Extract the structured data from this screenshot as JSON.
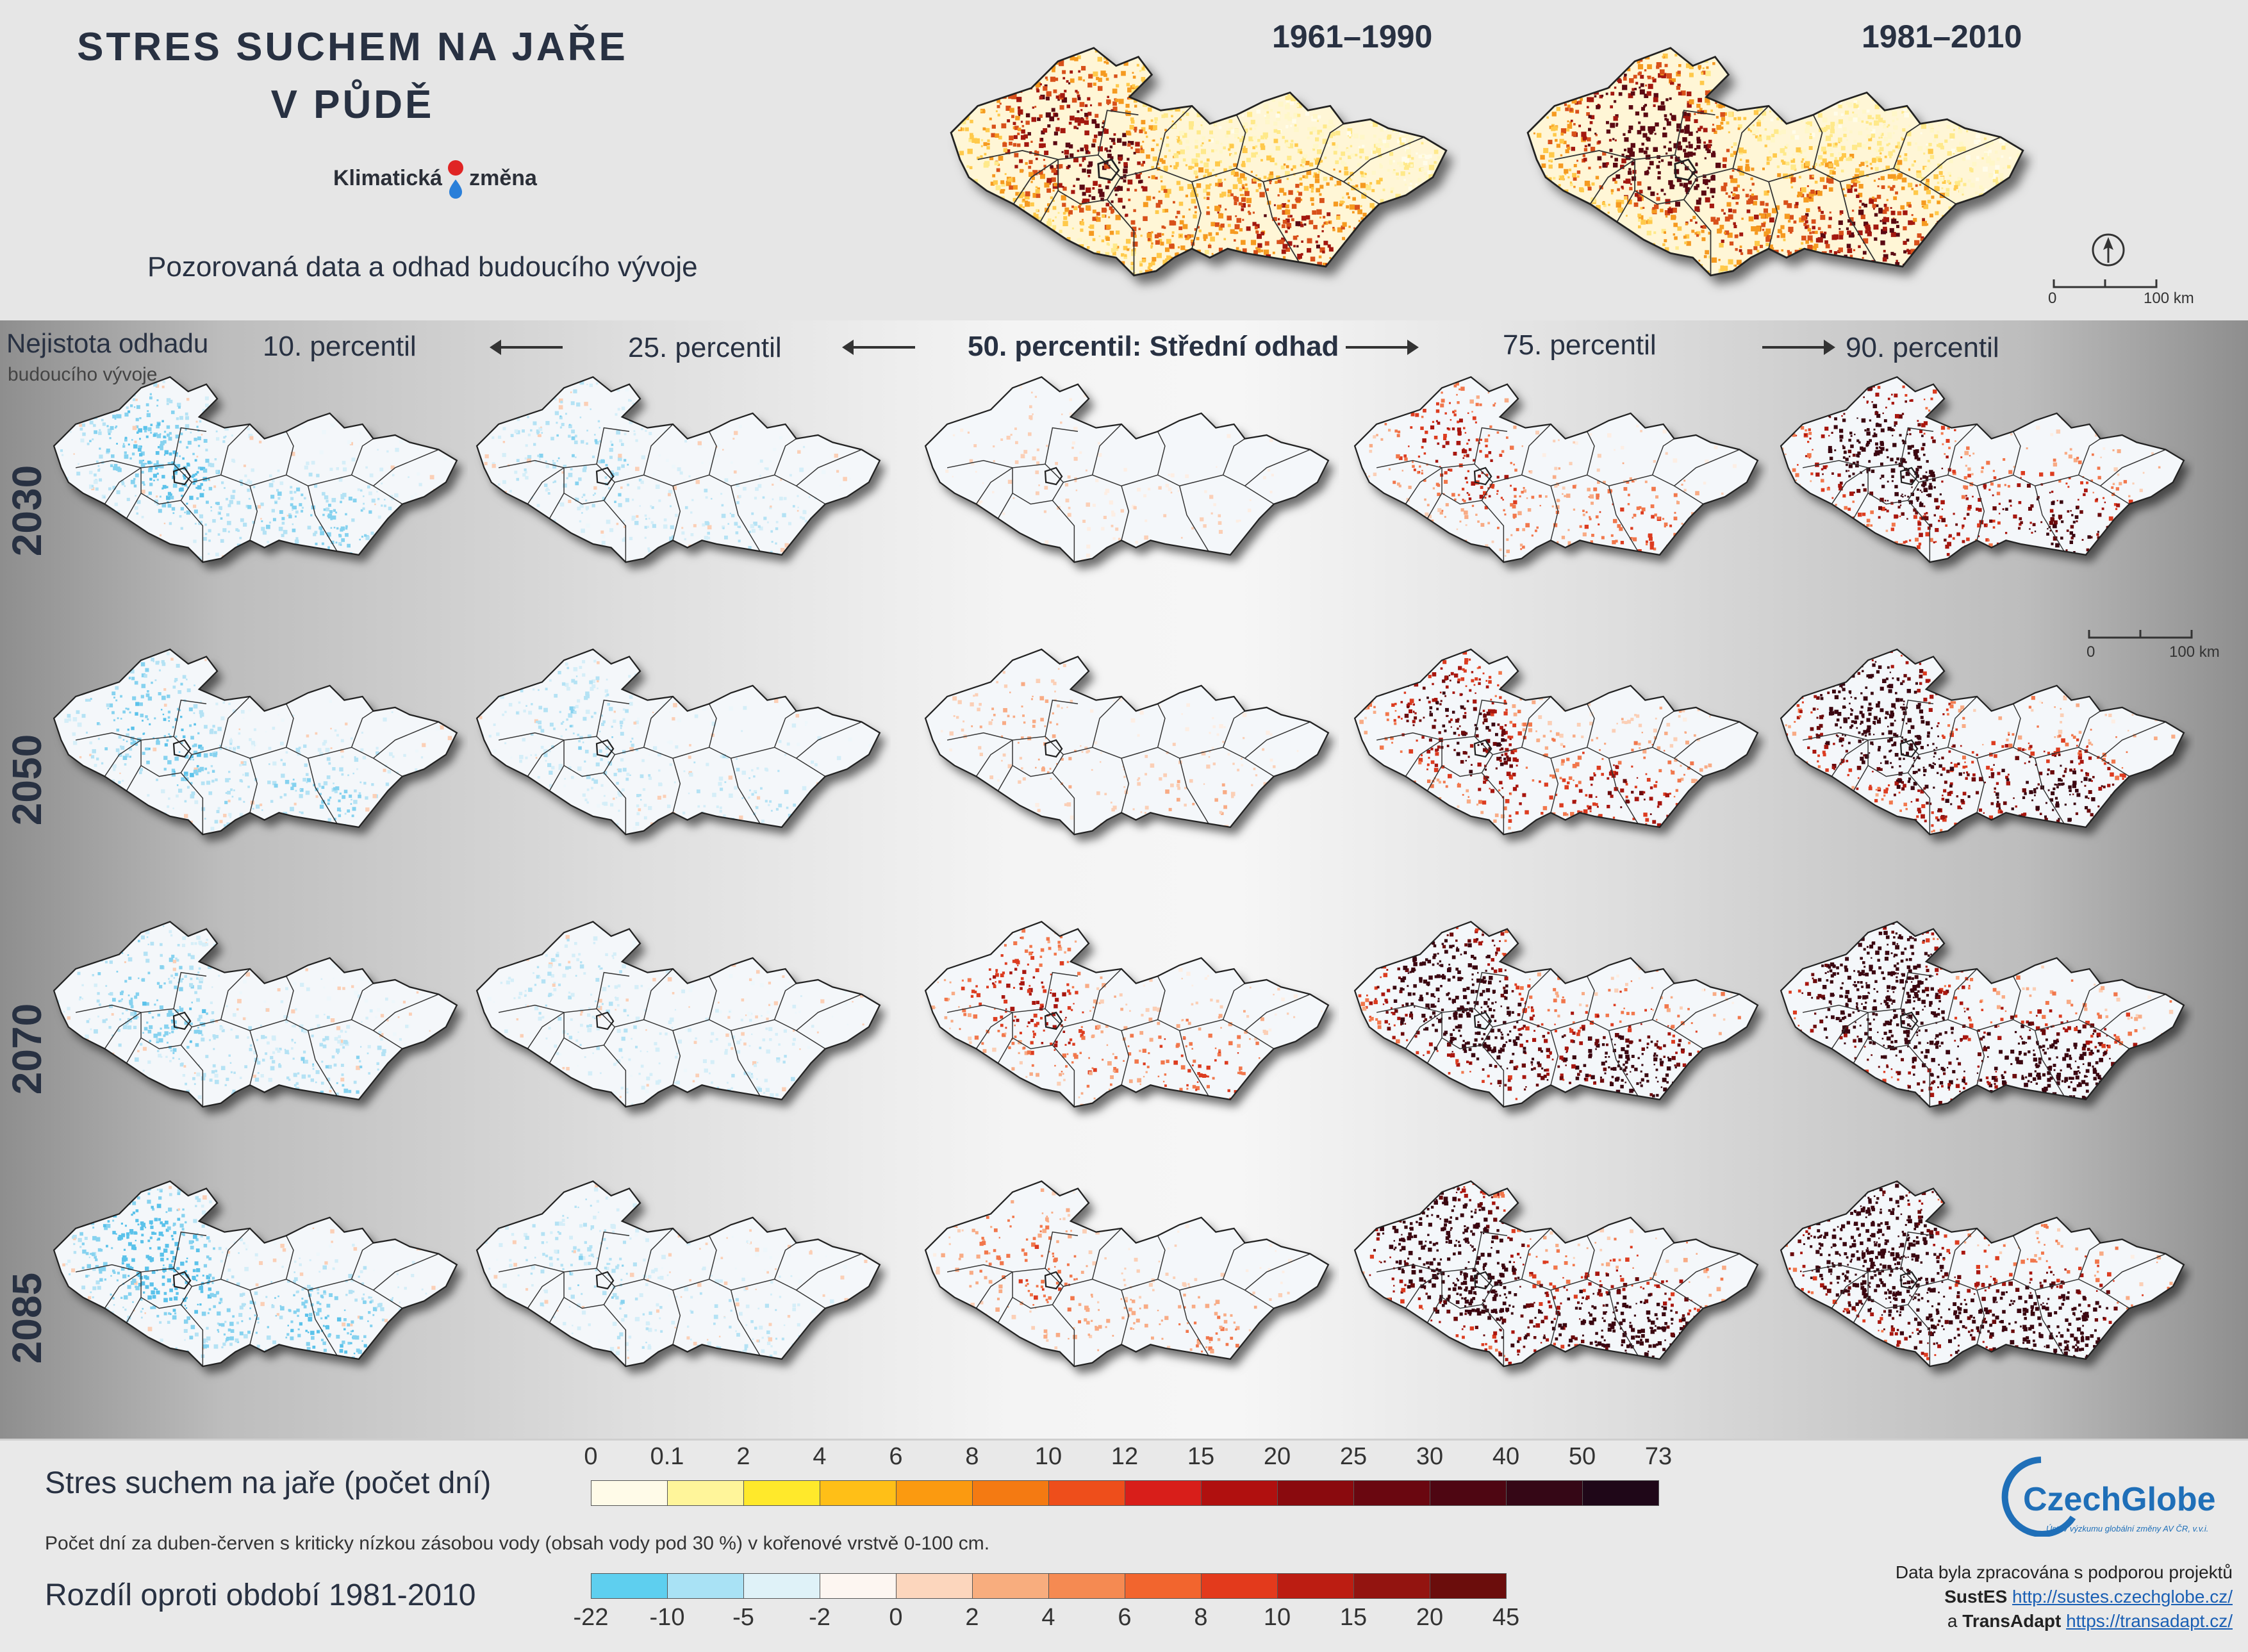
{
  "header": {
    "title_line1": "STRES SUCHEM NA JAŘE",
    "title_line2": "V PŮDĚ",
    "logo_left": "Klimatická",
    "logo_right": "změna",
    "subtitle": "Pozorovaná data a odhad budoucího vývoje",
    "period1": "1961–1990",
    "period2": "1981–2010",
    "scale_start": "0",
    "scale_end": "100 km"
  },
  "grid": {
    "uncertainty_line1": "Nejistota odhadu",
    "uncertainty_line2": "budoucího vývoje",
    "columns": [
      "10. percentil",
      "25. percentil",
      "50. percentil: Střední odhad",
      "75. percentil",
      "90. percentil"
    ],
    "rows": [
      "2030",
      "2050",
      "2070",
      "2085"
    ],
    "intensity": [
      [
        -0.55,
        -0.35,
        0.12,
        0.4,
        0.7
      ],
      [
        -0.5,
        -0.3,
        0.2,
        0.55,
        0.8
      ],
      [
        -0.45,
        -0.25,
        0.42,
        0.85,
        0.95
      ],
      [
        -0.7,
        -0.3,
        0.3,
        0.9,
        1.0
      ]
    ],
    "scale_start": "0",
    "scale_end": "100 km"
  },
  "legend": {
    "absolute_title": "Stres suchem na jaře (počet dní)",
    "absolute_ticks": [
      "0",
      "0.1",
      "2",
      "4",
      "6",
      "8",
      "10",
      "12",
      "15",
      "20",
      "25",
      "30",
      "40",
      "50",
      "73"
    ],
    "absolute_colors": [
      "#fffbe8",
      "#fff59a",
      "#ffe92b",
      "#ffbf17",
      "#fb9a10",
      "#f47a12",
      "#ee4e1b",
      "#d81e1a",
      "#b0100f",
      "#8a0a0e",
      "#6a0710",
      "#4e0612",
      "#350716",
      "#1f0718"
    ],
    "description": "Počet dní za duben-červen s kriticky nízkou zásobou vody (obsah vody pod 30 %) v kořenové vrstvě 0-100 cm.",
    "difference_title": "Rozdíl oproti období 1981-2010",
    "difference_ticks": [
      "-22",
      "-10",
      "-5",
      "-2",
      "0",
      "2",
      "4",
      "6",
      "8",
      "10",
      "15",
      "20",
      "45"
    ],
    "difference_colors": [
      "#5ecfef",
      "#a9e2f5",
      "#dff2f8",
      "#fdf6f1",
      "#fcd6bd",
      "#f8ad7e",
      "#f58a52",
      "#f2652e",
      "#e33a1c",
      "#bc1d12",
      "#931410",
      "#6b0d0c"
    ]
  },
  "footer": {
    "brand": "CzechGlobe",
    "brand_sub": "Ústav výzkumu globální změny AV ČR, v.v.i.",
    "credit_line": "Data byla zpracována s podporou projektů",
    "project1": "SustES",
    "project1_url": "http://sustes.czechglobe.cz/",
    "and": "a",
    "project2": "TransAdapt",
    "project2_url": "https://transadapt.cz/"
  }
}
